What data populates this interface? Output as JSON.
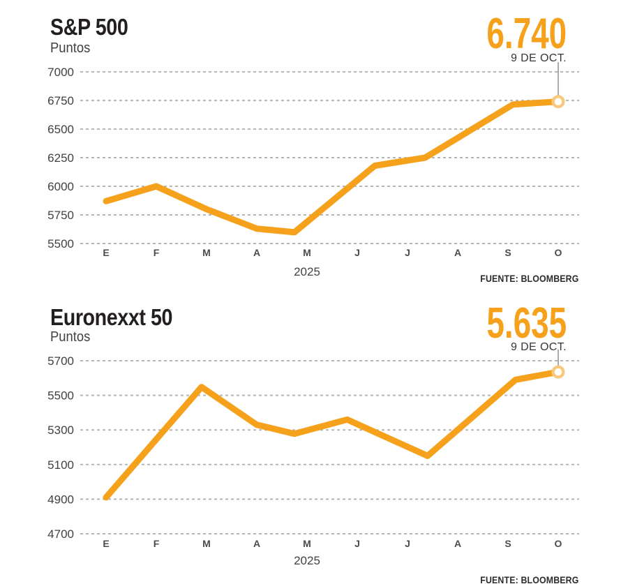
{
  "colors": {
    "line_orange": "#F5A11B",
    "grid_gray": "#B5B5B5",
    "marker_ring": "#F8C87E",
    "marker_core": "#FFFFFF",
    "leader_gray": "#58595B",
    "title_black": "#231F20",
    "label_gray": "#414042"
  },
  "chart_data": [
    {
      "type": "line",
      "title": "S&P 500",
      "unit": "Puntos",
      "latest": {
        "value": "6.740",
        "date": "9 DE OCT."
      },
      "year_label": "2025",
      "source": "FUENTE: BLOOMBERG",
      "x_tick_labels": [
        "E",
        "F",
        "M",
        "A",
        "M",
        "J",
        "J",
        "A",
        "S",
        "O"
      ],
      "x_unit": "month-index (0=E enero … 9=O octubre 2025)",
      "y_ticks": [
        7000,
        6750,
        6500,
        6250,
        6000,
        5750,
        5500
      ],
      "ylim": [
        5500,
        7000
      ],
      "grid": "dashed-horizontal",
      "end_marker": true,
      "series": [
        {
          "name": "S&P 500",
          "points": [
            [
              0,
              5870
            ],
            [
              1,
              6000
            ],
            [
              2,
              5800
            ],
            [
              3,
              5630
            ],
            [
              3.75,
              5598
            ],
            [
              5.35,
              6180
            ],
            [
              6.35,
              6250
            ],
            [
              8.1,
              6715
            ],
            [
              9,
              6740
            ]
          ]
        }
      ]
    },
    {
      "type": "line",
      "title": "Euronexxt 50",
      "unit": "Puntos",
      "latest": {
        "value": "5.635",
        "date": "9 DE OCT."
      },
      "year_label": "2025",
      "source": "FUENTE: BLOOMBERG",
      "x_tick_labels": [
        "E",
        "F",
        "M",
        "A",
        "M",
        "J",
        "J",
        "A",
        "S",
        "O"
      ],
      "x_unit": "month-index (0=E enero … 9=O octubre 2025)",
      "y_ticks": [
        5700,
        5500,
        5300,
        5100,
        4900,
        4700
      ],
      "ylim": [
        4700,
        5700
      ],
      "grid": "dashed-horizontal",
      "end_marker": true,
      "series": [
        {
          "name": "Euronexxt 50",
          "points": [
            [
              0,
              4910
            ],
            [
              1.9,
              5548
            ],
            [
              3,
              5330
            ],
            [
              3.75,
              5278
            ],
            [
              4.8,
              5360
            ],
            [
              6.4,
              5150
            ],
            [
              8.15,
              5590
            ],
            [
              9,
              5635
            ]
          ]
        }
      ]
    }
  ]
}
